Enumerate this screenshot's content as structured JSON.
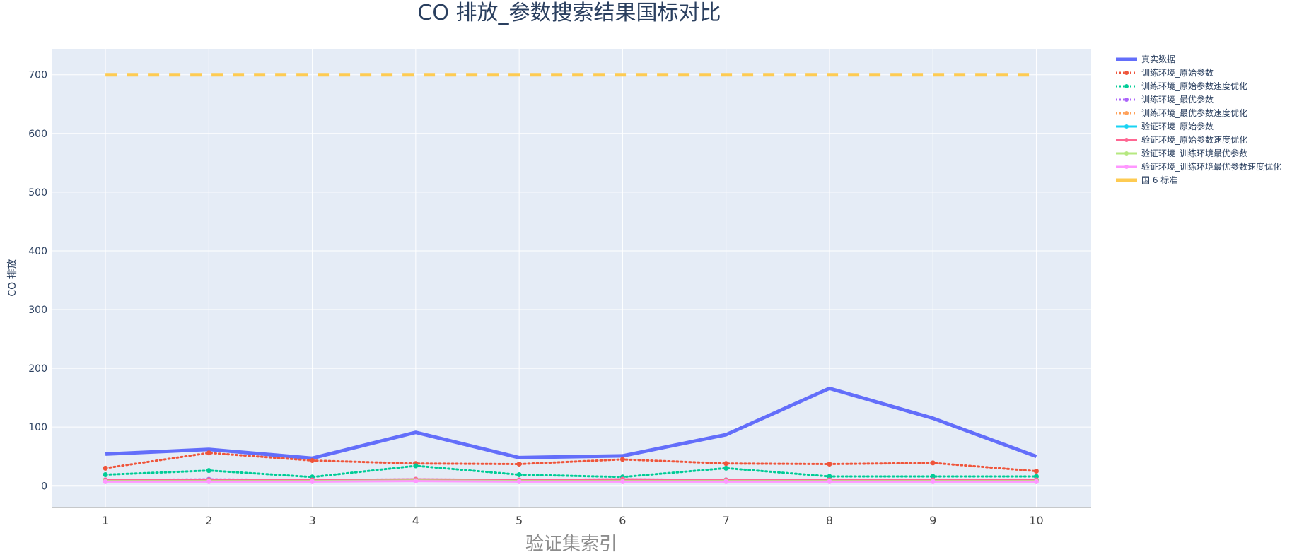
{
  "chart_data": {
    "type": "line",
    "title": "CO 排放_参数搜索结果国标对比",
    "xlabel": "验证集索引",
    "ylabel": "CO 排放",
    "x": [
      1,
      2,
      3,
      4,
      5,
      6,
      7,
      8,
      9,
      10
    ],
    "x_ticks": [
      "1",
      "2",
      "3",
      "4",
      "5",
      "6",
      "7",
      "8",
      "9",
      "10"
    ],
    "xlim": [
      0.48,
      10.53
    ],
    "y_ticks": [
      0,
      100,
      200,
      300,
      400,
      500,
      600,
      700
    ],
    "ylim": [
      -37,
      743
    ],
    "grid": true,
    "legend_position": "right",
    "background": "#e5ecf6",
    "series": [
      {
        "name": "真实数据",
        "color": "#636efa",
        "style": "solid",
        "width": 5,
        "markers": false,
        "values": [
          54,
          62,
          47,
          91,
          48,
          51,
          87,
          166,
          115,
          50
        ]
      },
      {
        "name": "训练环境_原始参数",
        "color": "#ef553b",
        "style": "dotted",
        "width": 3,
        "markers": true,
        "values": [
          30,
          56,
          43,
          38,
          37,
          45,
          38,
          37,
          39,
          25
        ]
      },
      {
        "name": "训练环境_原始参数速度优化",
        "color": "#00cc96",
        "style": "dotted",
        "width": 3,
        "markers": true,
        "values": [
          19,
          26,
          15,
          34,
          19,
          15,
          30,
          16,
          16,
          16
        ]
      },
      {
        "name": "训练环境_最优参数",
        "color": "#ab63fa",
        "style": "dotted",
        "width": 3,
        "markers": true,
        "values": [
          10,
          11,
          10,
          11,
          10,
          11,
          10,
          10,
          10,
          10
        ]
      },
      {
        "name": "训练环境_最优参数速度优化",
        "color": "#ffa15a",
        "style": "dotted",
        "width": 3,
        "markers": true,
        "values": [
          9,
          10,
          9,
          10,
          9,
          10,
          9,
          9,
          9,
          9
        ]
      },
      {
        "name": "验证环境_原始参数",
        "color": "#19d3f3",
        "style": "solid",
        "width": 3,
        "markers": true,
        "values": [
          10,
          10,
          10,
          10,
          10,
          10,
          10,
          10,
          10,
          10
        ]
      },
      {
        "name": "验证环境_原始参数速度优化",
        "color": "#ff6692",
        "style": "solid",
        "width": 3,
        "markers": true,
        "values": [
          10,
          10,
          10,
          11,
          10,
          11,
          10,
          10,
          10,
          10
        ]
      },
      {
        "name": "验证环境_训练环境最优参数",
        "color": "#b6e880",
        "style": "solid",
        "width": 3,
        "markers": true,
        "values": [
          8,
          8,
          8,
          9,
          8,
          8,
          8,
          8,
          8,
          8
        ]
      },
      {
        "name": "验证环境_训练环境最优参数速度优化",
        "color": "#ff97ff",
        "style": "solid",
        "width": 3,
        "markers": true,
        "values": [
          7,
          7,
          7,
          8,
          7,
          7,
          7,
          7,
          7,
          7
        ]
      },
      {
        "name": "国 6 标准",
        "color": "#fecb52",
        "style": "dashed",
        "width": 5,
        "markers": false,
        "values": [
          700,
          700,
          700,
          700,
          700,
          700,
          700,
          700,
          700,
          700
        ]
      }
    ]
  }
}
